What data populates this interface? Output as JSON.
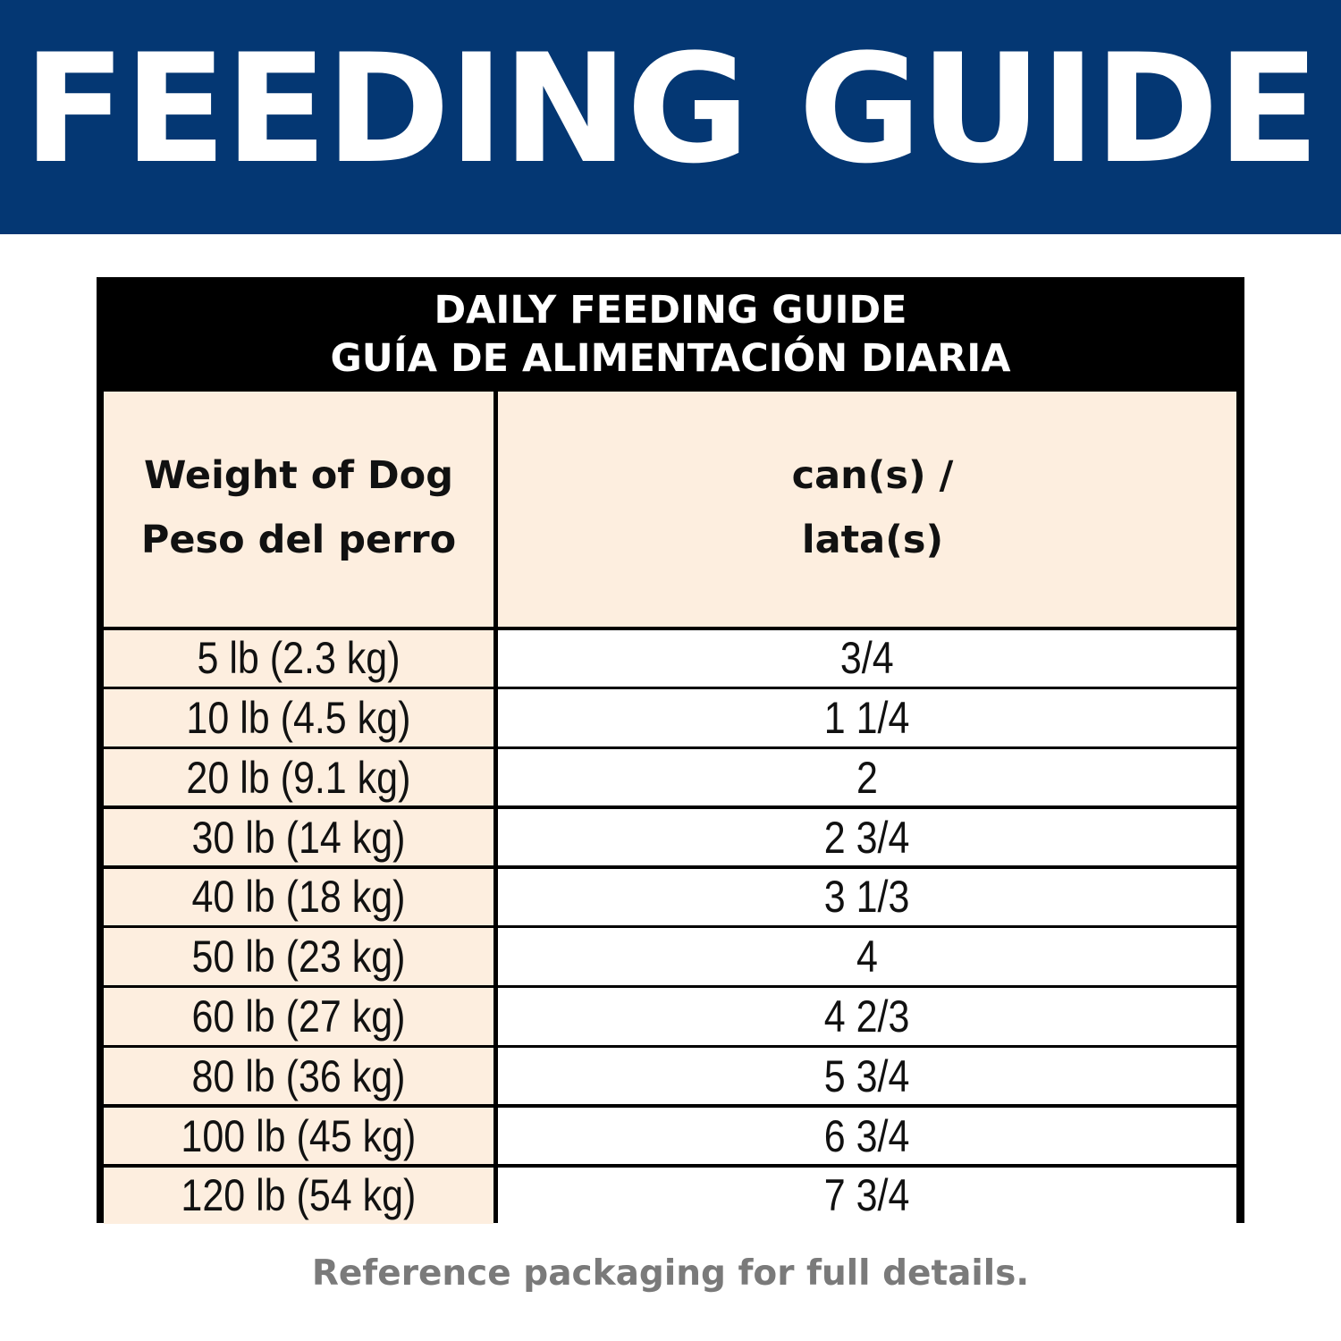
{
  "banner": {
    "title": "FEEDING GUIDE",
    "background_color": "#043773"
  },
  "table": {
    "title_line1": "DAILY FEEDING GUIDE",
    "title_line2": "GUÍA DE ALIMENTACIÓN DIARIA",
    "header": {
      "col1_line1": "Weight of Dog",
      "col1_line2": "Peso del perro",
      "col2_line1": "can(s) /",
      "col2_line2": "lata(s)"
    },
    "rows": [
      {
        "weight": "5 lb (2.3 kg)",
        "amount": "3/4"
      },
      {
        "weight": "10 lb (4.5 kg)",
        "amount": "1 1/4"
      },
      {
        "weight": "20 lb (9.1 kg)",
        "amount": "2"
      },
      {
        "weight": "30 lb (14 kg)",
        "amount": "2 3/4"
      },
      {
        "weight": "40 lb (18 kg)",
        "amount": "3 1/3"
      },
      {
        "weight": "50 lb (23 kg)",
        "amount": "4"
      },
      {
        "weight": "60 lb (27 kg)",
        "amount": "4 2/3"
      },
      {
        "weight": "80 lb (36 kg)",
        "amount": "5 3/4"
      },
      {
        "weight": "100 lb (45 kg)",
        "amount": "6 3/4"
      },
      {
        "weight": "120 lb (54 kg)",
        "amount": "7 3/4"
      }
    ],
    "header_fill_color": "#fdeedf"
  },
  "footer": {
    "note": "Reference packaging for full details."
  }
}
